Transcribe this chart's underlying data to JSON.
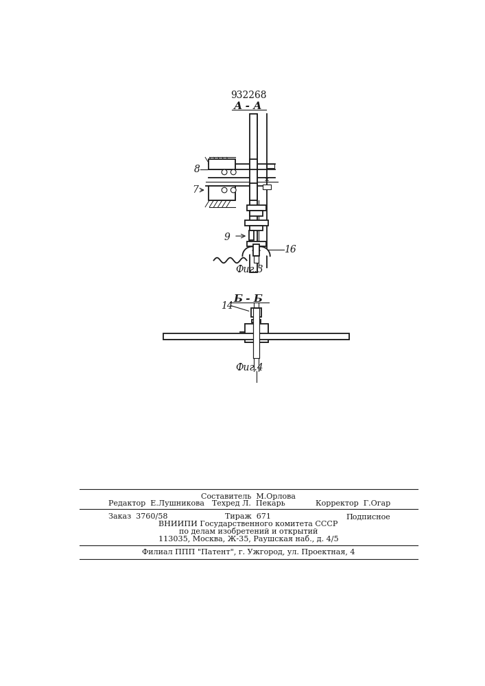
{
  "patent_number": "932268",
  "fig3_label": "А - А",
  "fig3_caption": "Фиг.3",
  "fig4_label": "Б - Б",
  "fig4_caption": "Фиг.4",
  "label_8": "8",
  "label_7": "7",
  "label_9": "9",
  "label_16": "16",
  "label_14": "14",
  "footer_line1": "Составитель  М.Орлова",
  "footer_line2_left": "Редактор  Е.Лушникова",
  "footer_line2_mid": "Техред Л.  Пекарь",
  "footer_line2_right": "Корректор  Г.Огар",
  "footer_line3_left": "Заказ  3760/58",
  "footer_line3_mid": "Тираж  671",
  "footer_line3_right": "Подписное",
  "footer_line4": "ВНИИПИ Государственного комитета СССР",
  "footer_line5": "по делам изобретений и открытий",
  "footer_line6": "113035, Москва, Ж-35, Раушская наб., д. 4/5",
  "footer_line7": "Филиал ППП \"Патент\", г. Ужгород, ул. Проектная, 4",
  "bg_color": "#ffffff",
  "line_color": "#1a1a1a"
}
